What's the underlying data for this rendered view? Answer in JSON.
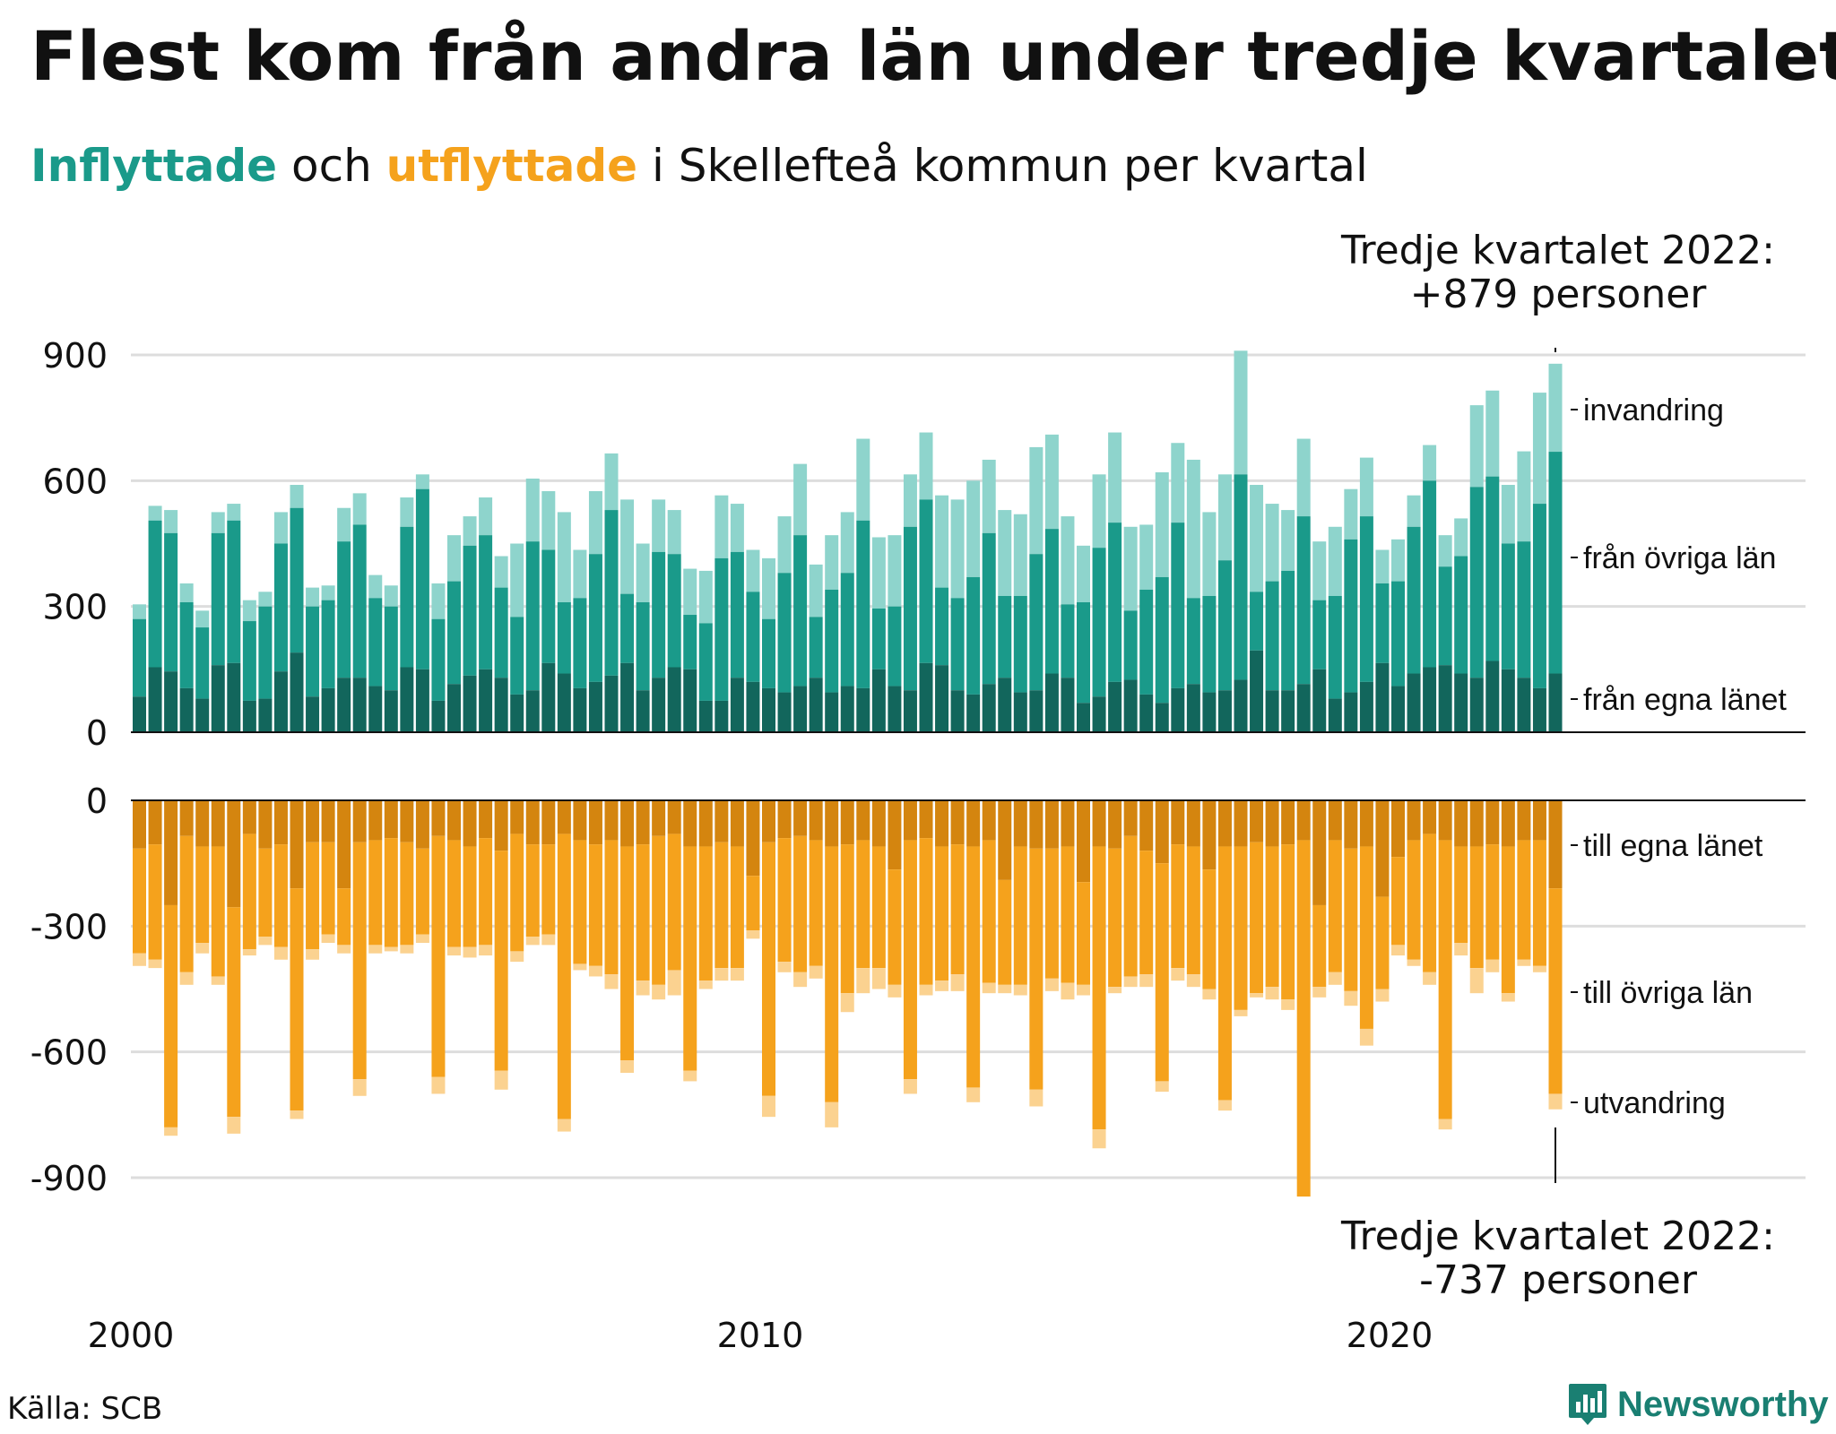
{
  "title": "Flest kom från andra län under tredje kvartalet",
  "subtitle": {
    "part1": "Inflyttade",
    "part2": " och ",
    "part3": "utflyttade",
    "part4": " i Skellefteå kommun per kvartal"
  },
  "annotation_top": {
    "line1": "Tredje kvartalet 2022:",
    "line2": "+879 personer"
  },
  "annotation_bottom": {
    "line1": "Tredje kvartalet 2022:",
    "line2": "-737 personer"
  },
  "source": "Källa: SCB",
  "logo_text": "Newsworthy",
  "colors": {
    "in_own_county": "#12665c",
    "in_other_counties": "#1a9a8a",
    "in_immigration": "#8ed4cc",
    "out_own_county": "#d4850f",
    "out_other_counties": "#f5a21c",
    "out_emigration": "#fbd290",
    "grid": "#dddddd"
  },
  "chart_data": {
    "type": "bar",
    "stacked": true,
    "x_start": "2000 Q1",
    "x_end": "2022 Q3",
    "x_tick_labels": [
      "2000",
      "2010",
      "2020"
    ],
    "y_ticks_top": [
      0,
      300,
      600,
      900
    ],
    "y_ticks_bottom": [
      0,
      -300,
      -600,
      -900
    ],
    "ylim_top": [
      0,
      900
    ],
    "ylim_bottom": [
      -900,
      0
    ],
    "series_labels_top": [
      "invandring",
      "från övriga län",
      "från egna länet"
    ],
    "series_labels_bottom": [
      "till egna länet",
      "till övriga län",
      "utvandring"
    ],
    "inflow_total": [
      305,
      540,
      530,
      355,
      290,
      525,
      545,
      315,
      335,
      525,
      590,
      345,
      350,
      535,
      570,
      375,
      350,
      560,
      615,
      355,
      470,
      515,
      560,
      420,
      450,
      605,
      575,
      525,
      435,
      575,
      665,
      555,
      450,
      555,
      530,
      390,
      385,
      565,
      545,
      435,
      415,
      515,
      640,
      400,
      470,
      525,
      700,
      465,
      470,
      615,
      715,
      565,
      555,
      600,
      650,
      530,
      520,
      680,
      710,
      515,
      445,
      615,
      715,
      490,
      495,
      620,
      690,
      650,
      525,
      615,
      910,
      590,
      545,
      530,
      700,
      455,
      490,
      580,
      655,
      435,
      460,
      565,
      685,
      470,
      510,
      780,
      815,
      590,
      670,
      810,
      879
    ],
    "inflow_other_cum": [
      270,
      505,
      475,
      310,
      250,
      475,
      505,
      265,
      300,
      450,
      535,
      300,
      315,
      455,
      495,
      320,
      300,
      490,
      580,
      270,
      360,
      445,
      470,
      345,
      275,
      455,
      435,
      310,
      320,
      425,
      530,
      330,
      310,
      430,
      425,
      280,
      260,
      415,
      430,
      335,
      270,
      380,
      470,
      275,
      340,
      380,
      505,
      295,
      300,
      490,
      555,
      345,
      320,
      370,
      475,
      325,
      325,
      425,
      485,
      305,
      310,
      440,
      500,
      290,
      340,
      370,
      500,
      320,
      325,
      410,
      615,
      335,
      360,
      385,
      515,
      315,
      325,
      460,
      515,
      355,
      360,
      490,
      600,
      395,
      420,
      585,
      610,
      450,
      455,
      545,
      669
    ],
    "inflow_own": [
      85,
      155,
      145,
      105,
      80,
      160,
      165,
      75,
      80,
      145,
      190,
      85,
      105,
      130,
      130,
      110,
      100,
      155,
      150,
      75,
      115,
      135,
      150,
      130,
      90,
      100,
      165,
      140,
      105,
      120,
      135,
      165,
      100,
      130,
      155,
      150,
      75,
      75,
      130,
      120,
      105,
      95,
      110,
      130,
      95,
      110,
      105,
      150,
      110,
      100,
      165,
      160,
      100,
      90,
      115,
      130,
      95,
      100,
      140,
      130,
      70,
      85,
      120,
      125,
      90,
      70,
      105,
      115,
      95,
      100,
      125,
      195,
      100,
      100,
      115,
      150,
      80,
      95,
      120,
      165,
      110,
      140,
      155,
      160,
      140,
      130,
      170,
      150,
      130,
      105,
      140
    ],
    "outflow_own_neg": [
      -115,
      -105,
      -250,
      -85,
      -110,
      -110,
      -255,
      -80,
      -115,
      -105,
      -210,
      -100,
      -100,
      -210,
      -100,
      -95,
      -90,
      -100,
      -115,
      -85,
      -95,
      -110,
      -90,
      -120,
      -80,
      -105,
      -105,
      -80,
      -95,
      -105,
      -95,
      -110,
      -105,
      -85,
      -80,
      -110,
      -110,
      -100,
      -110,
      -180,
      -100,
      -90,
      -85,
      -95,
      -110,
      -105,
      -95,
      -110,
      -165,
      -95,
      -90,
      -110,
      -105,
      -110,
      -95,
      -190,
      -110,
      -115,
      -115,
      -110,
      -195,
      -110,
      -115,
      -85,
      -120,
      -150,
      -105,
      -110,
      -165,
      -110,
      -110,
      -100,
      -110,
      -105,
      -95,
      -250,
      -95,
      -115,
      -110,
      -230,
      -135,
      -95,
      -80,
      -95,
      -110,
      -110,
      -105,
      -110,
      -95,
      -95,
      -210
    ],
    "outflow_other_cum_neg": [
      -365,
      -380,
      -780,
      -410,
      -340,
      -420,
      -755,
      -355,
      -325,
      -350,
      -740,
      -355,
      -320,
      -345,
      -665,
      -345,
      -350,
      -345,
      -320,
      -660,
      -350,
      -350,
      -345,
      -645,
      -360,
      -325,
      -320,
      -760,
      -390,
      -395,
      -415,
      -620,
      -430,
      -440,
      -405,
      -645,
      -430,
      -400,
      -400,
      -310,
      -705,
      -385,
      -410,
      -395,
      -720,
      -460,
      -400,
      -400,
      -440,
      -665,
      -440,
      -430,
      -415,
      -685,
      -435,
      -440,
      -440,
      -690,
      -425,
      -435,
      -440,
      -785,
      -445,
      -420,
      -415,
      -670,
      -400,
      -415,
      -450,
      -715,
      -500,
      -460,
      -445,
      -475,
      -945,
      -445,
      -410,
      -455,
      -545,
      -450,
      -345,
      -380,
      -410,
      -760,
      -340,
      -400,
      -380,
      -460,
      -380,
      -395,
      -700
    ],
    "outflow_total_neg": [
      -395,
      -400,
      -800,
      -440,
      -365,
      -440,
      -795,
      -370,
      -345,
      -380,
      -760,
      -380,
      -340,
      -365,
      -705,
      -365,
      -360,
      -365,
      -340,
      -700,
      -370,
      -375,
      -370,
      -690,
      -385,
      -345,
      -345,
      -790,
      -405,
      -420,
      -450,
      -650,
      -465,
      -475,
      -465,
      -670,
      -450,
      -430,
      -430,
      -330,
      -755,
      -410,
      -445,
      -425,
      -780,
      -505,
      -460,
      -450,
      -470,
      -700,
      -465,
      -455,
      -455,
      -720,
      -460,
      -460,
      -465,
      -730,
      -455,
      -475,
      -465,
      -830,
      -460,
      -445,
      -445,
      -695,
      -430,
      -445,
      -475,
      -740,
      -515,
      -470,
      -475,
      -500,
      -855,
      -470,
      -440,
      -490,
      -585,
      -480,
      -370,
      -395,
      -440,
      -785,
      -370,
      -460,
      -410,
      -480,
      -395,
      -410,
      -737
    ]
  }
}
